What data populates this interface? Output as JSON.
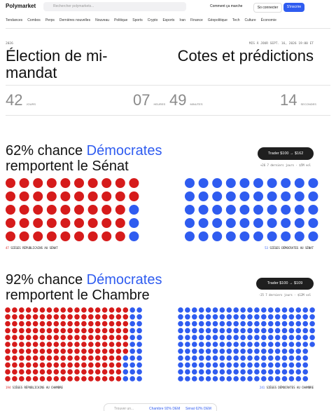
{
  "nav": {
    "logo": "Polymarket",
    "search": "Rechercher polymarkets...",
    "how": "Comment ça marche",
    "login": "So connecter",
    "signup": "S'inscrire"
  },
  "categories": [
    "Tendances",
    "Combos",
    "Perps",
    "Dernières nouvelles",
    "Nouveau",
    "Politique",
    "Sports",
    "Crypto",
    "Esports",
    "Iran",
    "Finance",
    "Géopolitique",
    "Tech",
    "Culture",
    "Économie"
  ],
  "header": {
    "year": "2026",
    "updated": "MIS À JOUR SEPT. 16, 2026 19:00 ET",
    "title": "Élection de mi-mandat",
    "subtitle": "Cotes et prédictions"
  },
  "countdown": [
    {
      "value": "42",
      "unit": "JOURS"
    },
    {
      "value": "07",
      "unit": "HEURES"
    },
    {
      "value": "49",
      "unit": "MINUTES"
    },
    {
      "value": "14",
      "unit": "SECONDES"
    }
  ],
  "senate": {
    "chance": "62% chance",
    "party": "Démocrates",
    "rest": "remportent le Sénat",
    "trade": "Trader $100 → $162",
    "stats": "+26 7 derniers jours · $5M vol",
    "rep_seats": 47,
    "rep_label": "SIÈGES RÉPUBLICAINS AU SÉNAT",
    "dem_seats": 53,
    "dem_label": "SIÈGES DÉMOCRATES AU SÉNAT"
  },
  "house": {
    "chance": "92% chance",
    "party": "Démocrates",
    "rest": "remportent le Chambre",
    "trade": "Trader $100 → $109",
    "stats": "-25 7 derniers jours · $12M vol",
    "rep_seats": 194,
    "rep_label": "SIÈGES RÉPUBLICAINS AU CHAMBRE",
    "dem_seats": 241,
    "dem_label": "SIÈGES DÉMOCRATES AU CHAMBRE"
  },
  "footer": {
    "search": "Trouver un...",
    "house": "Chambre 92% DEM",
    "senate": "Sénat 62% DEM"
  }
}
